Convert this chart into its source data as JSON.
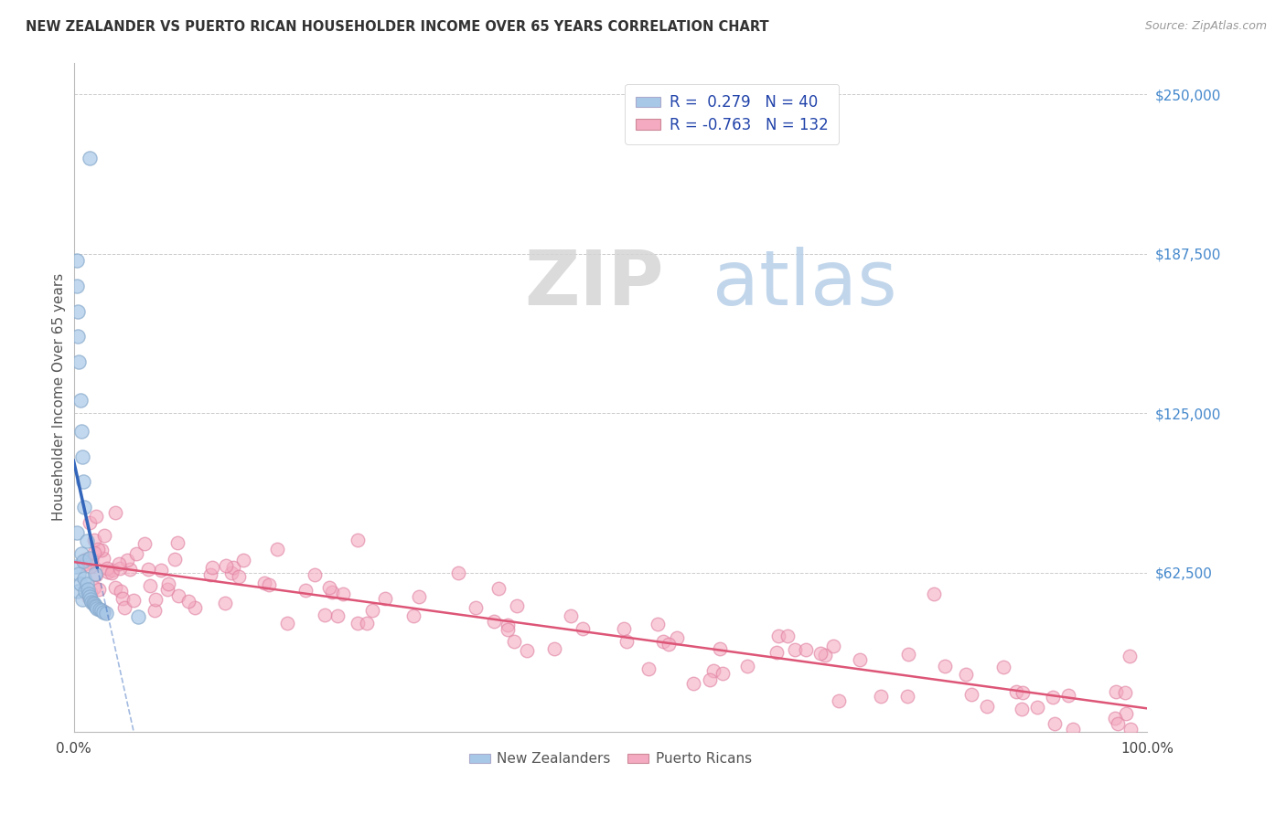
{
  "title": "NEW ZEALANDER VS PUERTO RICAN HOUSEHOLDER INCOME OVER 65 YEARS CORRELATION CHART",
  "source": "Source: ZipAtlas.com",
  "ylabel": "Householder Income Over 65 years",
  "xlim": [
    0.0,
    1.0
  ],
  "ylim": [
    0,
    262500
  ],
  "nz_R": 0.279,
  "nz_N": 40,
  "pr_R": -0.763,
  "pr_N": 132,
  "nz_color_face": "#a8c8e8",
  "nz_color_edge": "#88aacc",
  "pr_color_face": "#f4aac0",
  "pr_color_edge": "#e080a0",
  "nz_line_color": "#3366bb",
  "pr_line_color": "#dd5577",
  "legend_text_color": "#2244aa",
  "right_tick_color": "#4488cc",
  "watermark_zip_color": "#d8d8d8",
  "watermark_atlas_color": "#aac8e8",
  "nz_seed": 77,
  "pr_seed": 42
}
